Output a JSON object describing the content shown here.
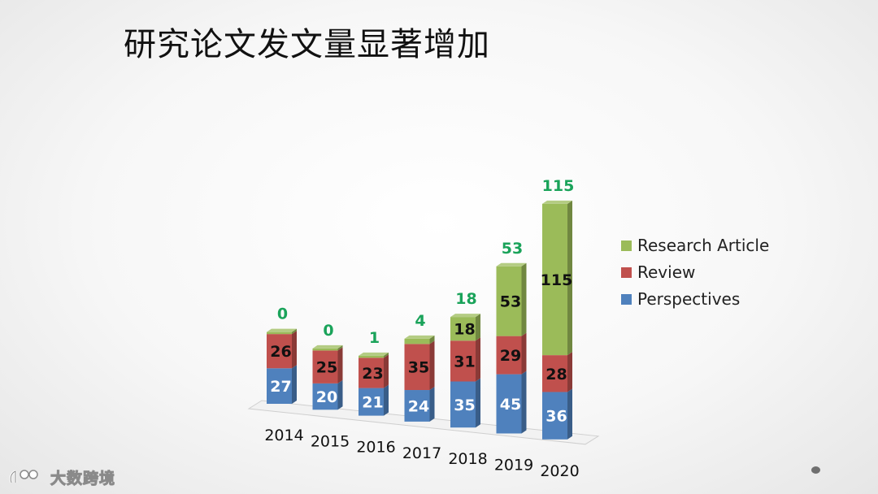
{
  "slide": {
    "title": "研究论文发文量显著增加",
    "watermark_text": "大数跨境",
    "watermark_icon": "brand-logo-icon",
    "page_dot_icon": "dot-icon"
  },
  "chart_data": {
    "type": "bar",
    "stacked": true,
    "style": "3d-column",
    "title": "研究论文发文量显著增加",
    "xlabel": "",
    "ylabel": "",
    "categories": [
      "2014",
      "2015",
      "2016",
      "2017",
      "2018",
      "2019",
      "2020"
    ],
    "series": [
      {
        "name": "Perspectives",
        "color": "#4f81bd",
        "label_color": "#ffffff",
        "values": [
          27,
          20,
          21,
          24,
          35,
          45,
          36
        ]
      },
      {
        "name": "Review",
        "color": "#c0504d",
        "label_color": "#111111",
        "values": [
          26,
          25,
          23,
          35,
          31,
          29,
          28
        ]
      },
      {
        "name": "Research Article",
        "color": "#9bbb59",
        "label_color": "#1aa35a",
        "values": [
          0,
          0,
          1,
          4,
          18,
          53,
          115
        ]
      }
    ],
    "legend": {
      "position": "right",
      "order": [
        "Research Article",
        "Review",
        "Perspectives"
      ]
    },
    "grid": false
  }
}
